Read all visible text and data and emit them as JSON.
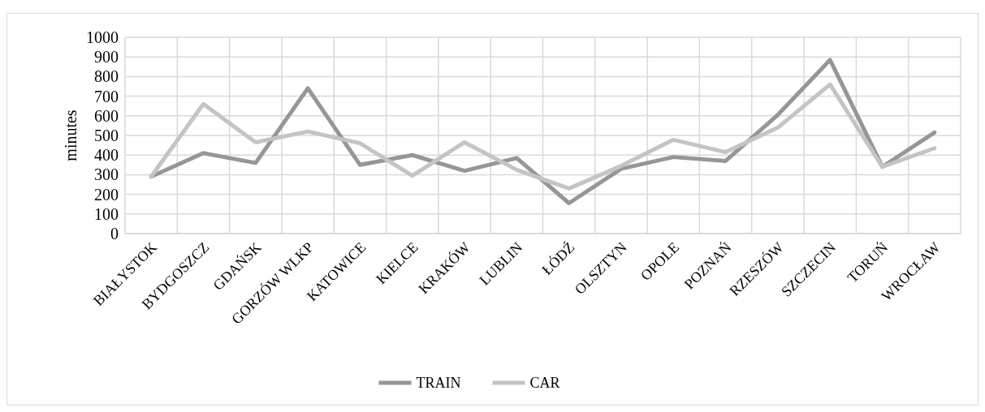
{
  "chart_data": {
    "type": "line",
    "ylabel": "minutes",
    "categories": [
      "BIAŁYSTOK",
      "BYDGOSZCZ",
      "GDAŃSK",
      "GORZÓW WLKP",
      "KATOWICE",
      "KIELCE",
      "KRAKÓW",
      "LUBLIN",
      "ŁÓDŹ",
      "OLSZTYN",
      "OPOLE",
      "POZNAŃ",
      "RZESZÓW",
      "SZCZECIN",
      "TORUŃ",
      "WROCŁAW"
    ],
    "series": [
      {
        "name": "TRAIN",
        "color": "#969696",
        "values": [
          290,
          410,
          360,
          740,
          350,
          400,
          320,
          385,
          155,
          330,
          390,
          370,
          605,
          885,
          340,
          515
        ]
      },
      {
        "name": "CAR",
        "color": "#c4c4c4",
        "values": [
          290,
          660,
          465,
          520,
          460,
          295,
          465,
          325,
          230,
          345,
          478,
          415,
          540,
          760,
          340,
          435
        ]
      }
    ],
    "ylim": [
      0,
      1000
    ],
    "yticks": [
      0,
      100,
      200,
      300,
      400,
      500,
      600,
      700,
      800,
      900,
      1000
    ],
    "grid": true,
    "legend": "bottom",
    "marker": "none",
    "line_style": "solid"
  }
}
